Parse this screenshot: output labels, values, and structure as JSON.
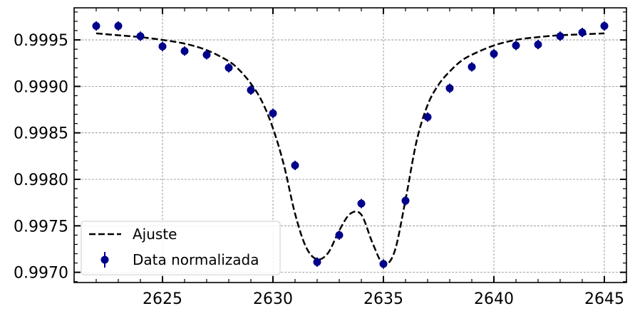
{
  "chart_data": {
    "type": "scatter",
    "title": "",
    "xlabel": "",
    "ylabel": "",
    "xlim": [
      2621,
      2646
    ],
    "ylim": [
      0.99689,
      0.999845
    ],
    "grid": true,
    "legend_placement": "lower-left",
    "x_ticks": [
      2625,
      2630,
      2635,
      2640,
      2645
    ],
    "x_tick_labels": [
      "2625",
      "2630",
      "2635",
      "2640",
      "2645"
    ],
    "y_ticks": [
      0.997,
      0.9975,
      0.998,
      0.9985,
      0.999,
      0.9995
    ],
    "y_tick_labels": [
      "0.9970",
      "0.9975",
      "0.9980",
      "0.9985",
      "0.9990",
      "0.9995"
    ],
    "series": [
      {
        "name": "Data normalizada",
        "kind": "errorbar",
        "color": "#00008b",
        "x": [
          2622,
          2623,
          2624,
          2625,
          2626,
          2627,
          2628,
          2629,
          2630,
          2631,
          2632,
          2633,
          2634,
          2635,
          2636,
          2637,
          2638,
          2639,
          2640,
          2641,
          2642,
          2643,
          2644,
          2645
        ],
        "y": [
          0.99965,
          0.99965,
          0.99954,
          0.99943,
          0.99938,
          0.99934,
          0.9992,
          0.99896,
          0.99871,
          0.99815,
          0.99711,
          0.9974,
          0.99774,
          0.99709,
          0.99777,
          0.99867,
          0.99898,
          0.99921,
          0.99935,
          0.99944,
          0.99945,
          0.99954,
          0.99958,
          0.99965
        ],
        "yerr": [
          5e-05,
          5e-05,
          5e-05,
          5e-05,
          5e-05,
          5e-05,
          5e-05,
          5e-05,
          5e-05,
          5e-05,
          5e-05,
          5e-05,
          5e-05,
          5e-05,
          5e-05,
          5e-05,
          5e-05,
          5e-05,
          5e-05,
          5e-05,
          5e-05,
          5e-05,
          5e-05,
          5e-05
        ]
      },
      {
        "name": "Ajuste",
        "kind": "line",
        "style": "dashed",
        "color": "#000000",
        "x": [
          2622,
          2623,
          2624,
          2625,
          2626,
          2627,
          2628,
          2628.5,
          2629,
          2629.5,
          2630,
          2630.5,
          2631,
          2631.5,
          2632,
          2632.5,
          2633,
          2633.5,
          2634,
          2634.5,
          2635,
          2635.5,
          2636,
          2636.5,
          2637,
          2637.5,
          2638,
          2638.5,
          2639,
          2640,
          2641,
          2642,
          2643,
          2644,
          2645
        ],
        "y": [
          0.99957,
          0.99955,
          0.99953,
          0.9995,
          0.99946,
          0.99939,
          0.99927,
          0.99917,
          0.99903,
          0.99884,
          0.99855,
          0.99815,
          0.99763,
          0.99727,
          0.99714,
          0.99721,
          0.99745,
          0.99763,
          0.99762,
          0.99732,
          0.99709,
          0.99722,
          0.99778,
          0.99841,
          0.9988,
          0.99902,
          0.99916,
          0.99927,
          0.99934,
          0.99944,
          0.9995,
          0.99953,
          0.99955,
          0.99956,
          0.99957
        ]
      }
    ]
  }
}
